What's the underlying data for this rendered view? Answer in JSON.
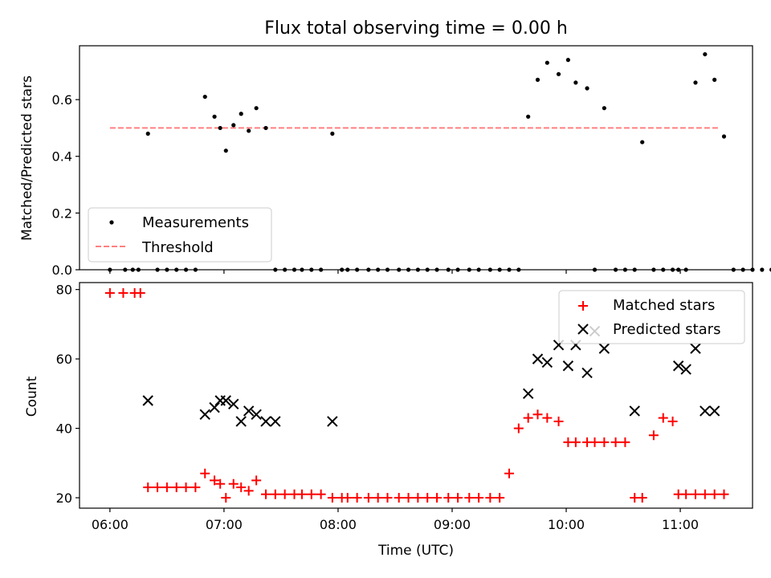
{
  "chart_data": [
    {
      "type": "scatter",
      "title": "Flux total observing time = 0.00 h",
      "ylabel": "Matched/Predicted stars",
      "ylim": [
        0,
        0.79
      ],
      "yticks": [
        "0.0",
        "0.2",
        "0.4",
        "0.6"
      ],
      "threshold": {
        "name": "Threshold",
        "value": 0.5,
        "x_start": "06:00",
        "x_end": "11:20",
        "color": "#ff7f7f"
      },
      "legend": {
        "placement": "lower-left",
        "entries": [
          "Measurements",
          "Threshold"
        ]
      },
      "series": [
        {
          "name": "Measurements",
          "color": "#000000",
          "x": [
            "06:00",
            "06:08",
            "06:12",
            "06:15",
            "06:20",
            "06:25",
            "06:30",
            "06:35",
            "06:40",
            "06:45",
            "06:50",
            "06:55",
            "06:58",
            "07:01",
            "07:05",
            "07:09",
            "07:13",
            "07:17",
            "07:22",
            "07:27",
            "07:32",
            "07:37",
            "07:41",
            "07:46",
            "07:51",
            "07:57",
            "08:02",
            "08:05",
            "08:10",
            "08:16",
            "08:21",
            "08:26",
            "08:32",
            "08:37",
            "08:42",
            "08:47",
            "08:52",
            "08:58",
            "09:03",
            "09:09",
            "09:14",
            "09:20",
            "09:25",
            "09:30",
            "09:35",
            "09:40",
            "09:45",
            "09:50",
            "09:56",
            "10:01",
            "10:05",
            "10:11",
            "10:15",
            "10:20",
            "10:26",
            "10:31",
            "10:36",
            "10:40",
            "10:46",
            "10:51",
            "10:56",
            "10:59",
            "11:03",
            "11:08",
            "11:13",
            "11:18",
            "11:23",
            "11:28",
            "11:33",
            "11:38",
            "11:43",
            "11:48",
            "11:53",
            "11:56",
            "11:58"
          ],
          "y": [
            0,
            0,
            0,
            0,
            0.48,
            0,
            0,
            0,
            0,
            0,
            0.61,
            0.54,
            0.5,
            0.42,
            0.51,
            0.55,
            0.49,
            0.57,
            0.5,
            0,
            0,
            0,
            0,
            0,
            0,
            0.48,
            0,
            0,
            0,
            0,
            0,
            0,
            0,
            0,
            0,
            0,
            0,
            0,
            0,
            0,
            0,
            0,
            0,
            0,
            0,
            0.54,
            0.67,
            0.73,
            0.69,
            0.74,
            0.66,
            0.64,
            0,
            0.57,
            0,
            0,
            0,
            0.45,
            0,
            0,
            0,
            0,
            0,
            0.66,
            0.76,
            0.67,
            0.47,
            0,
            0,
            0,
            0,
            0,
            0,
            0,
            0
          ]
        }
      ]
    },
    {
      "type": "scatter",
      "xlabel": "Time (UTC)",
      "ylabel": "Count",
      "ylim": [
        17,
        82
      ],
      "yticks": [
        "20",
        "40",
        "60",
        "80"
      ],
      "xticks": [
        "06:00",
        "07:00",
        "08:00",
        "09:00",
        "10:00",
        "11:00"
      ],
      "xlim": [
        "05:44",
        "11:38"
      ],
      "legend": {
        "placement": "top-right",
        "entries": [
          "Matched stars",
          "Predicted stars"
        ]
      },
      "series": [
        {
          "name": "Matched stars",
          "marker": "plus",
          "color": "#ff0000",
          "x": [
            "06:00",
            "06:07",
            "06:13",
            "06:16",
            "06:20",
            "06:25",
            "06:30",
            "06:35",
            "06:40",
            "06:45",
            "06:50",
            "06:55",
            "06:58",
            "07:01",
            "07:05",
            "07:09",
            "07:13",
            "07:17",
            "07:22",
            "07:27",
            "07:32",
            "07:37",
            "07:41",
            "07:46",
            "07:51",
            "07:57",
            "08:02",
            "08:05",
            "08:10",
            "08:16",
            "08:21",
            "08:26",
            "08:32",
            "08:37",
            "08:42",
            "08:47",
            "08:52",
            "08:58",
            "09:03",
            "09:09",
            "09:14",
            "09:20",
            "09:25",
            "09:30",
            "09:35",
            "09:40",
            "09:45",
            "09:50",
            "09:56",
            "10:01",
            "10:05",
            "10:11",
            "10:15",
            "10:20",
            "10:26",
            "10:31",
            "10:36",
            "10:40",
            "10:46",
            "10:51",
            "10:56",
            "10:59",
            "11:03",
            "11:08",
            "11:13",
            "11:18",
            "11:23"
          ],
          "y": [
            79,
            79,
            79,
            79,
            23,
            23,
            23,
            23,
            23,
            23,
            27,
            25,
            24,
            20,
            24,
            23,
            22,
            25,
            21,
            21,
            21,
            21,
            21,
            21,
            21,
            20,
            20,
            20,
            20,
            20,
            20,
            20,
            20,
            20,
            20,
            20,
            20,
            20,
            20,
            20,
            20,
            20,
            20,
            27,
            40,
            43,
            44,
            43,
            42,
            36,
            36,
            36,
            36,
            36,
            36,
            36,
            20,
            20,
            38,
            43,
            42,
            21,
            21,
            21,
            21,
            21,
            21
          ]
        },
        {
          "name": "Predicted stars",
          "marker": "cross",
          "color": "#000000",
          "x": [
            "06:20",
            "06:50",
            "06:55",
            "06:58",
            "07:01",
            "07:05",
            "07:09",
            "07:13",
            "07:17",
            "07:22",
            "07:27",
            "07:57",
            "09:40",
            "09:45",
            "09:50",
            "09:56",
            "10:01",
            "10:05",
            "10:11",
            "10:15",
            "10:20",
            "10:36",
            "10:59",
            "11:03",
            "11:08",
            "11:13",
            "11:18"
          ],
          "y": [
            48,
            44,
            46,
            48,
            48,
            47,
            42,
            45,
            44,
            42,
            42,
            42,
            50,
            60,
            59,
            64,
            58,
            64,
            56,
            68,
            63,
            45,
            58,
            57,
            63,
            45,
            45
          ]
        }
      ]
    }
  ]
}
